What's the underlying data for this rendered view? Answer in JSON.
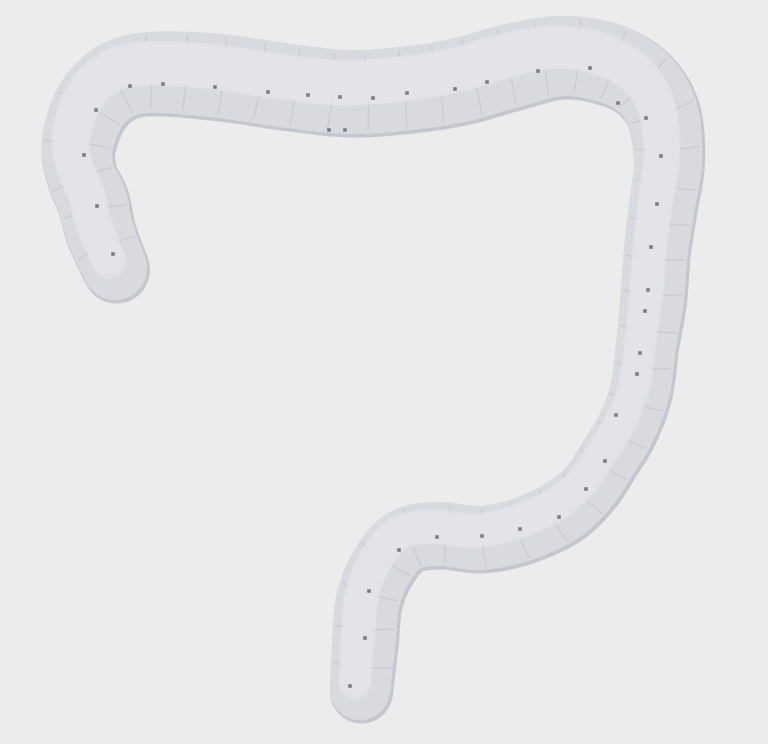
{
  "scene": {
    "subject": "colon-3d-model",
    "background_color": "#ececec",
    "tube_fill_color": "#d9d9e0",
    "tube_shadow_color": "#c6c6ce",
    "tube_highlight_color": "#e4e4ea",
    "marker_color": "#7c7c88",
    "marker_count": 38
  }
}
